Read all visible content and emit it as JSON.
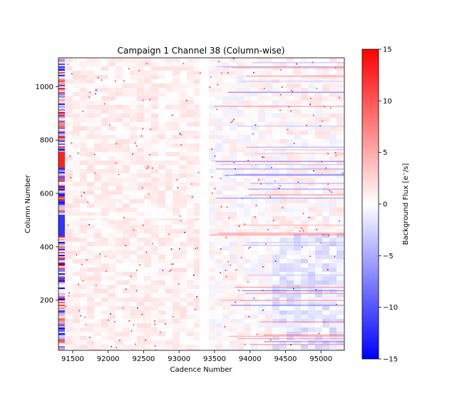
{
  "chart_data": {
    "type": "heatmap",
    "title": "Campaign 1 Channel 38 (Column-wise)",
    "xlabel": "Cadence Number",
    "ylabel": "Column Number",
    "xlim": [
      91300,
      95330
    ],
    "ylim": [
      12,
      1108
    ],
    "xticks": [
      91500,
      92000,
      92500,
      93000,
      93500,
      94000,
      94500,
      95000
    ],
    "yticks": [
      200,
      400,
      600,
      800,
      1000
    ],
    "colorbar": {
      "label": "Background Flux [e⁻/s]",
      "min": -15,
      "max": 15,
      "ticks": [
        -15,
        -10,
        -5,
        0,
        5,
        10,
        15
      ],
      "colormap": "bwr"
    },
    "gap": {
      "x_start": 93290,
      "x_end": 93420
    },
    "horizontal_gap_row": 512,
    "edge_band": {
      "x_start": 91300,
      "x_end": 91390
    },
    "colors": {
      "negative": "#0000ff",
      "zero": "#ffffff",
      "positive": "#ff0000"
    }
  }
}
